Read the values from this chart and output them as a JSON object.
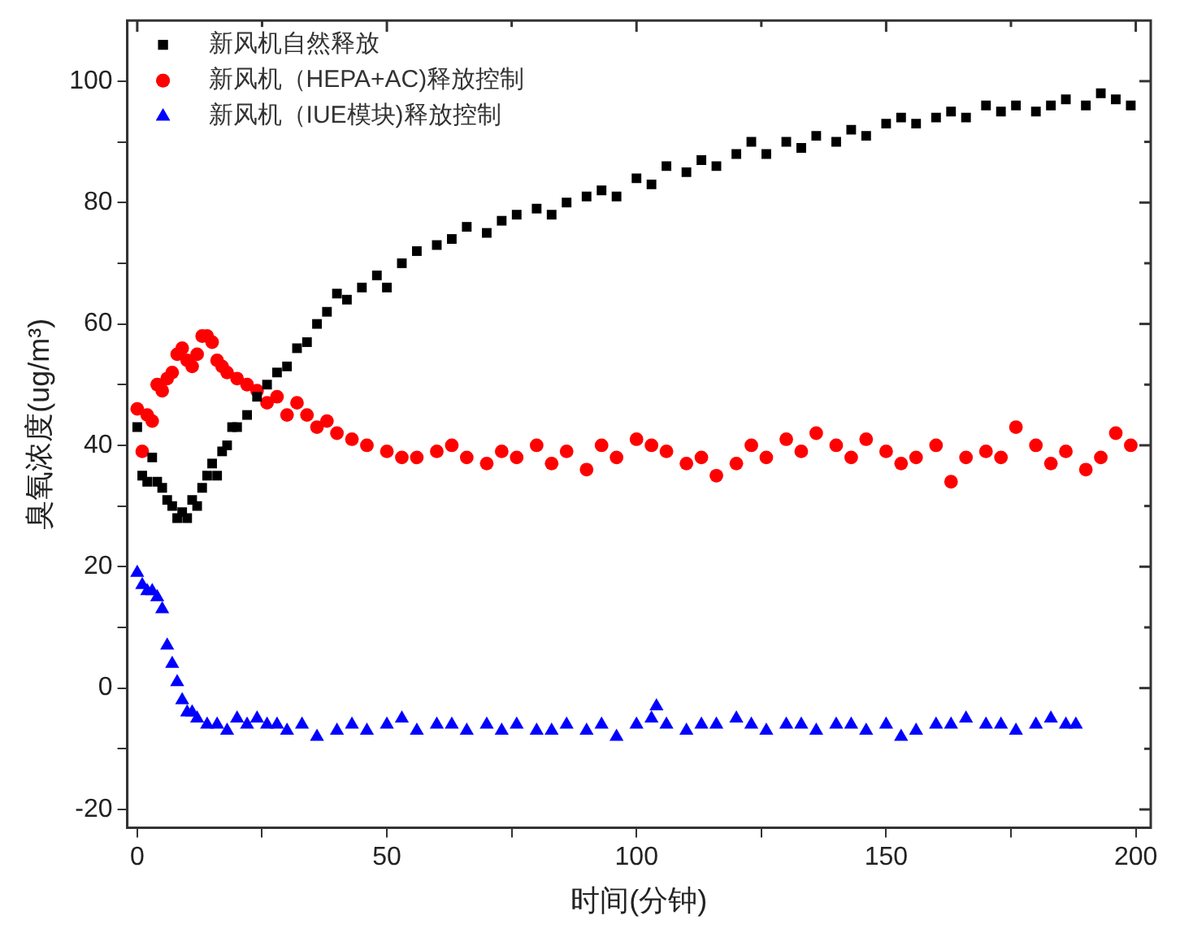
{
  "chart_data": {
    "type": "scatter",
    "xlabel": "时间(分钟)",
    "ylabel": "臭氧浓度(ug/m³)",
    "xlim": [
      -2,
      203
    ],
    "ylim": [
      -23,
      110
    ],
    "xticks": [
      0,
      {
        "value": 25,
        "label": null
      },
      50,
      {
        "value": 75,
        "label": null
      },
      100,
      {
        "value": 125,
        "label": null
      },
      150,
      {
        "value": 175,
        "label": null
      },
      200
    ],
    "yticks": [
      -20,
      {
        "value": -10,
        "label": null
      },
      0,
      {
        "value": 10,
        "label": null
      },
      20,
      {
        "value": 30,
        "label": null
      },
      40,
      {
        "value": 50,
        "label": null
      },
      60,
      {
        "value": 70,
        "label": null
      },
      80,
      {
        "value": 90,
        "label": null
      },
      100
    ],
    "grid": false,
    "legend": "top left",
    "series": [
      {
        "name": "新风机自然释放",
        "color": "#000000",
        "marker": "square",
        "x": [
          0,
          1,
          2,
          3,
          4,
          5,
          6,
          7,
          8,
          9,
          10,
          11,
          12,
          13,
          14,
          15,
          16,
          17,
          18,
          19,
          20,
          22,
          24,
          26,
          28,
          30,
          32,
          34,
          36,
          38,
          40,
          42,
          45,
          48,
          50,
          53,
          56,
          60,
          63,
          66,
          70,
          73,
          76,
          80,
          83,
          86,
          90,
          93,
          96,
          100,
          103,
          106,
          110,
          113,
          116,
          120,
          123,
          126,
          130,
          133,
          136,
          140,
          143,
          146,
          150,
          153,
          156,
          160,
          163,
          166,
          170,
          173,
          176,
          180,
          183,
          186,
          190,
          193,
          196,
          199
        ],
        "values": [
          43,
          35,
          34,
          38,
          34,
          33,
          31,
          30,
          28,
          29,
          28,
          31,
          30,
          33,
          35,
          37,
          35,
          39,
          40,
          43,
          43,
          45,
          48,
          50,
          52,
          53,
          56,
          57,
          60,
          62,
          65,
          64,
          66,
          68,
          66,
          70,
          72,
          73,
          74,
          76,
          75,
          77,
          78,
          79,
          78,
          80,
          81,
          82,
          81,
          84,
          83,
          86,
          85,
          87,
          86,
          88,
          90,
          88,
          90,
          89,
          91,
          90,
          92,
          91,
          93,
          94,
          93,
          94,
          95,
          94,
          96,
          95,
          96,
          95,
          96,
          97,
          96,
          98,
          97,
          96
        ]
      },
      {
        "name": "新风机（HEPA+AC)释放控制",
        "color": "#ff0000",
        "marker": "circle",
        "x": [
          0,
          1,
          2,
          3,
          4,
          5,
          6,
          7,
          8,
          9,
          10,
          11,
          12,
          13,
          14,
          15,
          16,
          17,
          18,
          20,
          22,
          24,
          26,
          28,
          30,
          32,
          34,
          36,
          38,
          40,
          43,
          46,
          50,
          53,
          56,
          60,
          63,
          66,
          70,
          73,
          76,
          80,
          83,
          86,
          90,
          93,
          96,
          100,
          103,
          106,
          110,
          113,
          116,
          120,
          123,
          126,
          130,
          133,
          136,
          140,
          143,
          146,
          150,
          153,
          156,
          160,
          163,
          166,
          170,
          173,
          176,
          180,
          183,
          186,
          190,
          193,
          196,
          199
        ],
        "values": [
          46,
          39,
          45,
          44,
          50,
          49,
          51,
          52,
          55,
          56,
          54,
          53,
          55,
          58,
          58,
          57,
          54,
          53,
          52,
          51,
          50,
          49,
          47,
          48,
          45,
          47,
          45,
          43,
          44,
          42,
          41,
          40,
          39,
          38,
          38,
          39,
          40,
          38,
          37,
          39,
          38,
          40,
          37,
          39,
          36,
          40,
          38,
          41,
          40,
          39,
          37,
          38,
          35,
          37,
          40,
          38,
          41,
          39,
          42,
          40,
          38,
          41,
          39,
          37,
          38,
          40,
          34,
          38,
          39,
          38,
          43,
          40,
          37,
          39,
          36,
          38,
          42,
          40
        ]
      },
      {
        "name": "新风机（IUE模块)释放控制",
        "color": "#0000ff",
        "marker": "triangle",
        "x": [
          0,
          1,
          2,
          3,
          4,
          5,
          6,
          7,
          8,
          9,
          10,
          11,
          12,
          14,
          16,
          18,
          20,
          22,
          24,
          26,
          28,
          30,
          33,
          36,
          40,
          43,
          46,
          50,
          53,
          56,
          60,
          63,
          66,
          70,
          73,
          76,
          80,
          83,
          86,
          90,
          93,
          96,
          100,
          103,
          104,
          106,
          110,
          113,
          116,
          120,
          123,
          126,
          130,
          133,
          136,
          140,
          143,
          146,
          150,
          153,
          156,
          160,
          163,
          166,
          170,
          173,
          176,
          180,
          183,
          186,
          188
        ],
        "values": [
          19,
          17,
          16,
          16,
          15,
          13,
          7,
          4,
          1,
          -2,
          -4,
          -4,
          -5,
          -6,
          -6,
          -7,
          -5,
          -6,
          -5,
          -6,
          -6,
          -7,
          -6,
          -8,
          -7,
          -6,
          -7,
          -6,
          -5,
          -7,
          -6,
          -6,
          -7,
          -6,
          -7,
          -6,
          -7,
          -7,
          -6,
          -7,
          -6,
          -8,
          -6,
          -5,
          -3,
          -6,
          -7,
          -6,
          -6,
          -5,
          -6,
          -7,
          -6,
          -6,
          -7,
          -6,
          -6,
          -7,
          -6,
          -8,
          -7,
          -6,
          -6,
          -5,
          -6,
          -6,
          -7,
          -6,
          -5,
          -6,
          -6
        ]
      }
    ]
  }
}
